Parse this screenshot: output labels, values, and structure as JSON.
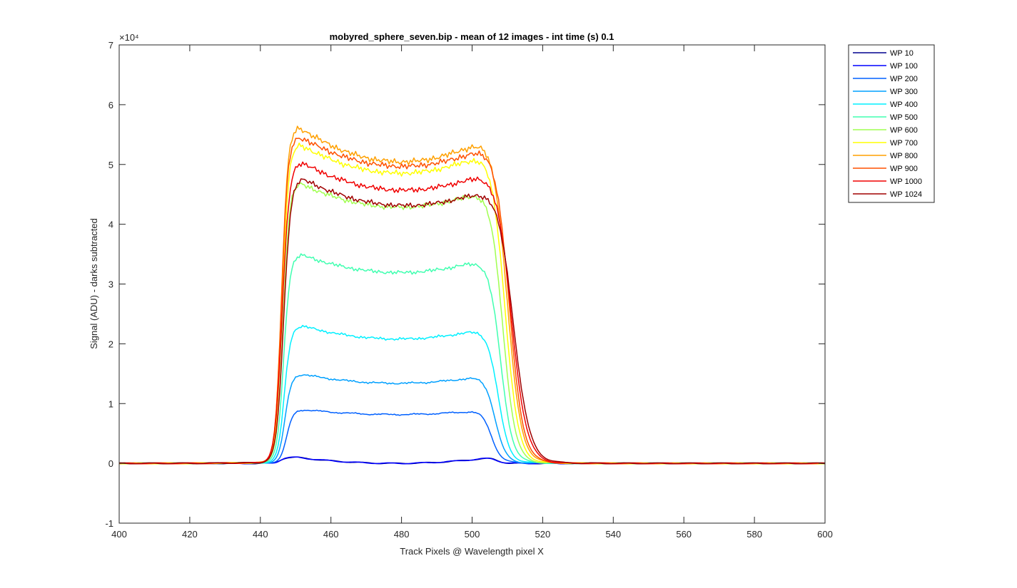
{
  "chart_data": {
    "type": "line",
    "title": "mobyred_sphere_seven.bip - mean of 12 images - int time (s) 0.1",
    "xlabel": "Track Pixels @ Wavelength pixel X",
    "ylabel": "Signal (ADU) - darks subtracted",
    "xlim": [
      400,
      600
    ],
    "ylim": [
      -10000,
      70000
    ],
    "y_exponent_label": "×10⁴",
    "x_ticks": [
      400,
      420,
      440,
      460,
      480,
      500,
      520,
      540,
      560,
      580,
      600
    ],
    "y_ticks": [
      -10000,
      0,
      10000,
      20000,
      30000,
      40000,
      50000,
      60000,
      70000
    ],
    "y_tick_labels": [
      "-1",
      "0",
      "1",
      "2",
      "3",
      "4",
      "5",
      "6",
      "7"
    ],
    "grid": false,
    "legend_position": "outside-top-right",
    "series": [
      {
        "name": "WP 10",
        "color": "#00008F",
        "plateau": 0,
        "left_edge": 445.5,
        "right_edge": 507.0,
        "rise_width": 0.8,
        "fall_width": 1.2,
        "edge_lift": 1000
      },
      {
        "name": "WP 100",
        "color": "#0000FF",
        "plateau": 0,
        "left_edge": 445.5,
        "right_edge": 507.0,
        "rise_width": 0.8,
        "fall_width": 1.2,
        "edge_lift": 1000
      },
      {
        "name": "WP 200",
        "color": "#0060FF",
        "plateau": 8500,
        "left_edge": 447.5,
        "right_edge": 505.5,
        "rise_width": 0.9,
        "fall_width": 1.4,
        "edge_lift": 800
      },
      {
        "name": "WP 300",
        "color": "#00A0FF",
        "plateau": 14000,
        "left_edge": 447.0,
        "right_edge": 506.5,
        "rise_width": 0.9,
        "fall_width": 1.5,
        "edge_lift": 1500
      },
      {
        "name": "WP 400",
        "color": "#00F0FF",
        "plateau": 21800,
        "left_edge": 446.8,
        "right_edge": 507.3,
        "rise_width": 0.9,
        "fall_width": 1.6,
        "edge_lift": 2200
      },
      {
        "name": "WP 500",
        "color": "#40FFB0",
        "plateau": 33500,
        "left_edge": 446.6,
        "right_edge": 508.0,
        "rise_width": 0.9,
        "fall_width": 1.7,
        "edge_lift": 3000
      },
      {
        "name": "WP 600",
        "color": "#A0FF50",
        "plateau": 45000,
        "left_edge": 446.4,
        "right_edge": 508.6,
        "rise_width": 0.9,
        "fall_width": 1.8,
        "edge_lift": 4000
      },
      {
        "name": "WP 700",
        "color": "#FFFF00",
        "plateau": 51000,
        "left_edge": 446.2,
        "right_edge": 509.2,
        "rise_width": 0.9,
        "fall_width": 1.9,
        "edge_lift": 4800
      },
      {
        "name": "WP 800",
        "color": "#FFA000",
        "plateau": 53000,
        "left_edge": 446.0,
        "right_edge": 509.8,
        "rise_width": 0.9,
        "fall_width": 2.0,
        "edge_lift": 5800
      },
      {
        "name": "WP 900",
        "color": "#FF5000",
        "plateau": 52200,
        "left_edge": 446.0,
        "right_edge": 510.4,
        "rise_width": 0.9,
        "fall_width": 2.0,
        "edge_lift": 5000
      },
      {
        "name": "WP 1000",
        "color": "#F00000",
        "plateau": 48000,
        "left_edge": 446.2,
        "right_edge": 511.0,
        "rise_width": 1.0,
        "fall_width": 2.2,
        "edge_lift": 4800
      },
      {
        "name": "WP 1024",
        "color": "#A00000",
        "plateau": 45300,
        "left_edge": 446.6,
        "right_edge": 511.6,
        "rise_width": 1.0,
        "fall_width": 2.3,
        "edge_lift": 4600
      }
    ]
  }
}
